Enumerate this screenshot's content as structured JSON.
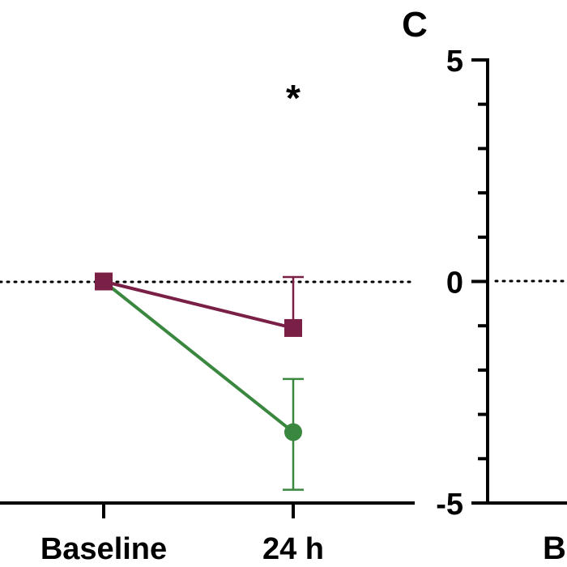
{
  "panel_label": "C",
  "chart_data": [
    {
      "type": "line",
      "categories": [
        "Baseline",
        "24 h"
      ],
      "annotations": [
        {
          "text": "*",
          "category": "24 h"
        }
      ],
      "reference_line": {
        "y": 0,
        "style": "dotted"
      },
      "series": [
        {
          "color": "#7a1f45",
          "marker": "square",
          "values": [
            0,
            -1.05
          ],
          "error_upper": [
            0,
            1.15
          ],
          "error_lower": [
            0,
            0
          ]
        },
        {
          "color": "#3a873f",
          "marker": "circle",
          "values": [
            0,
            -3.4
          ],
          "error_upper": [
            0,
            1.2
          ],
          "error_lower": [
            0,
            1.3
          ]
        }
      ],
      "ylim": [
        -5,
        5
      ]
    },
    {
      "type": "line",
      "y_ticks": [
        "5",
        "0",
        "-5"
      ],
      "x_tick_partial": "B",
      "reference_line": {
        "y": 0,
        "style": "dotted"
      },
      "ylim": [
        -5,
        5
      ]
    }
  ]
}
